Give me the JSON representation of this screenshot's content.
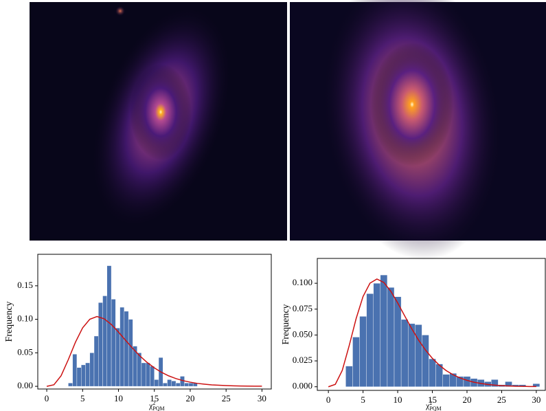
{
  "chart_data": [
    {
      "type": "histogram",
      "ylabel": "Frequency",
      "xlabel": {
        "symbol": "χ",
        "sup": "2",
        "sub": "PQM"
      },
      "bins": [
        3.0,
        3.6,
        4.2,
        4.8,
        5.4,
        6.0,
        6.6,
        7.2,
        7.8,
        8.4,
        9.0,
        9.6,
        10.2,
        10.8,
        11.4,
        12.0,
        12.6,
        13.2,
        13.8,
        14.4,
        15.0,
        15.6,
        16.2,
        16.8,
        17.4,
        18.0,
        18.6,
        19.2,
        19.8,
        20.4,
        21.0
      ],
      "values": [
        0.005,
        0.048,
        0.028,
        0.032,
        0.035,
        0.05,
        0.075,
        0.125,
        0.135,
        0.18,
        0.13,
        0.087,
        0.118,
        0.112,
        0.1,
        0.06,
        0.05,
        0.035,
        0.035,
        0.03,
        0.01,
        0.043,
        0.005,
        0.01,
        0.008,
        0.005,
        0.015,
        0.005,
        0.005,
        0.005
      ],
      "color": "#4a72b0",
      "curve": {
        "color": "#cc1111",
        "x": [
          0,
          1,
          2,
          3,
          4,
          5,
          6,
          7,
          8,
          9,
          10,
          11,
          12,
          13,
          14,
          15,
          16,
          17,
          18,
          19,
          20,
          21,
          22,
          23,
          24,
          25,
          26,
          27,
          28,
          29,
          30
        ],
        "values": [
          0,
          0.0023,
          0.0158,
          0.0397,
          0.0658,
          0.0872,
          0.1001,
          0.1041,
          0.1008,
          0.0923,
          0.081,
          0.0686,
          0.0564,
          0.0452,
          0.0356,
          0.0275,
          0.0209,
          0.0156,
          0.0116,
          0.0085,
          0.0062,
          0.0044,
          0.0032,
          0.0022,
          0.0016,
          0.0011,
          0.0008,
          0.0005,
          0.0004,
          0.0002,
          0.0002
        ]
      },
      "xlim": [
        -1.25,
        31.3
      ],
      "ylim": [
        -0.004,
        0.197
      ],
      "xticks": [
        0,
        5,
        10,
        15,
        20,
        25,
        30
      ],
      "yticks": [
        {
          "value": 0,
          "label": "0.00"
        },
        {
          "value": 0.05,
          "label": "0.05"
        },
        {
          "value": 0.1,
          "label": "0.10"
        },
        {
          "value": 0.15,
          "label": "0.15"
        }
      ]
    },
    {
      "type": "histogram",
      "ylabel": "Frequency",
      "xlabel": {
        "symbol": "χ",
        "sup": "2",
        "sub": "PQM"
      },
      "bins": [
        2.5,
        3.5,
        4.5,
        5.5,
        6.5,
        7.5,
        8.5,
        9.5,
        10.5,
        11.5,
        12.5,
        13.5,
        14.5,
        15.5,
        16.5,
        17.5,
        18.5,
        19.5,
        20.5,
        21.5,
        22.5,
        23.5,
        24.5,
        25.5,
        26.5,
        27.5,
        28.5,
        29.5,
        30.5
      ],
      "values": [
        0.02,
        0.048,
        0.068,
        0.09,
        0.1,
        0.108,
        0.096,
        0.087,
        0.065,
        0.061,
        0.06,
        0.05,
        0.027,
        0.022,
        0.012,
        0.013,
        0.01,
        0.01,
        0.008,
        0.007,
        0.005,
        0.007,
        0.002,
        0.005,
        0.002,
        0.002,
        0,
        0.003
      ],
      "color": "#4a72b0",
      "curve": {
        "color": "#cc1111",
        "x": [
          0,
          1,
          2,
          3,
          4,
          5,
          6,
          7,
          8,
          9,
          10,
          11,
          12,
          13,
          14,
          15,
          16,
          17,
          18,
          19,
          20,
          21,
          22,
          23,
          24,
          25,
          26,
          27,
          28,
          29,
          30
        ],
        "values": [
          0,
          0.0023,
          0.0158,
          0.0397,
          0.0658,
          0.0872,
          0.1001,
          0.1041,
          0.1008,
          0.0923,
          0.081,
          0.0686,
          0.0564,
          0.0452,
          0.0356,
          0.0275,
          0.0209,
          0.0156,
          0.0116,
          0.0085,
          0.0062,
          0.0044,
          0.0032,
          0.0022,
          0.0016,
          0.0011,
          0.0008,
          0.0005,
          0.0004,
          0.0002,
          0.0002
        ]
      },
      "xlim": [
        -1.6,
        31.3
      ],
      "ylim": [
        -0.0035,
        0.124
      ],
      "xticks": [
        0,
        5,
        10,
        15,
        20,
        25,
        30
      ],
      "yticks": [
        {
          "value": 0,
          "label": "0.000"
        },
        {
          "value": 0.025,
          "label": "0.025"
        },
        {
          "value": 0.05,
          "label": "0.050"
        },
        {
          "value": 0.075,
          "label": "0.075"
        },
        {
          "value": 0.1,
          "label": "0.100"
        }
      ]
    }
  ]
}
